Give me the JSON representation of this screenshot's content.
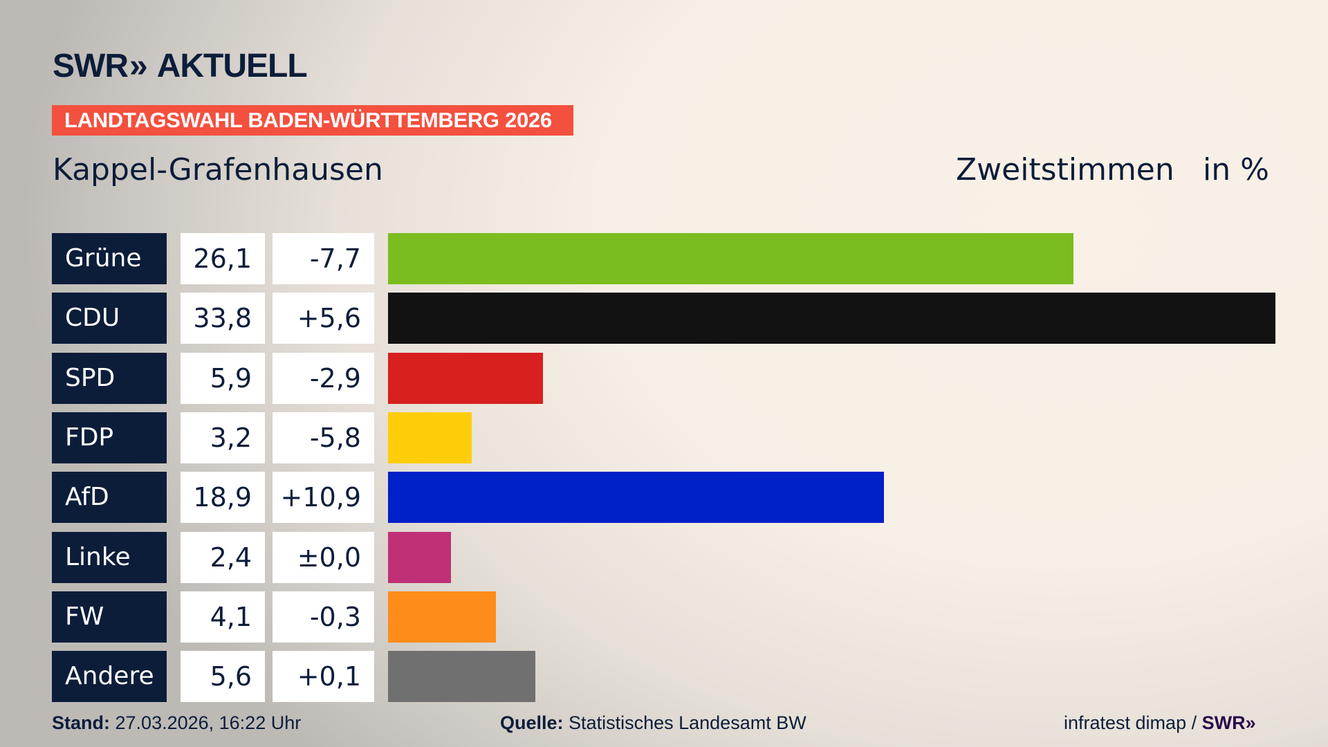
{
  "logo": {
    "text": "SWR",
    "arrows": "»",
    "suffix": "AKTUELL"
  },
  "banner": "LANDTAGSWAHL BADEN-WÜRTTEMBERG 2026",
  "title": "Kappel-Grafenhausen",
  "subtitle": "Zweitstimmen",
  "unit": "in %",
  "chart_data": {
    "type": "bar",
    "orientation": "horizontal",
    "categories": [
      "Grüne",
      "CDU",
      "SPD",
      "FDP",
      "AfD",
      "Linke",
      "FW",
      "Andere"
    ],
    "values": [
      26.1,
      33.8,
      5.9,
      3.2,
      18.9,
      2.4,
      4.1,
      5.6
    ],
    "value_labels": [
      "26,1",
      "33,8",
      "5,9",
      "3,2",
      "18,9",
      "2,4",
      "4,1",
      "5,6"
    ],
    "diff_labels": [
      "-7,7",
      "+5,6",
      "-2,9",
      "-5,8",
      "+10,9",
      "±0,0",
      "-0,3",
      "+0,1"
    ],
    "colors": [
      "#7bbd1f",
      "#121212",
      "#d7201f",
      "#fecd0a",
      "#0020c8",
      "#bf3076",
      "#fd8c1b",
      "#707070"
    ]
  },
  "footer": {
    "stand_label": "Stand:",
    "stand": "27.03.2026, 16:22 Uhr",
    "quelle_label": "Quelle:",
    "quelle": "Statistisches Landesamt BW",
    "credit": "infratest dimap /",
    "credit_logo": "SWR»"
  }
}
